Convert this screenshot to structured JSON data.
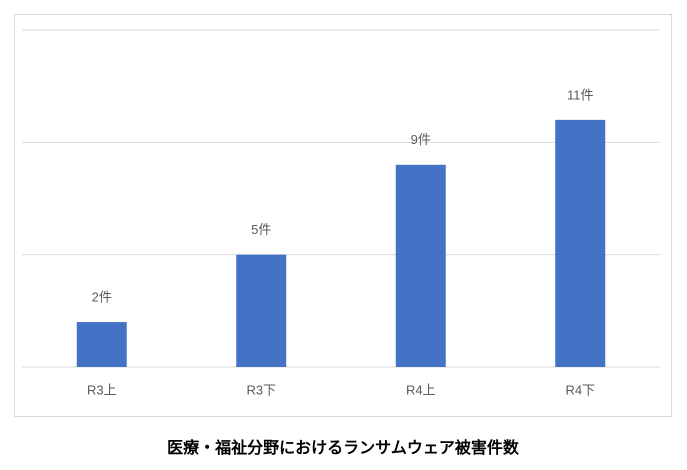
{
  "chart_data": {
    "type": "bar",
    "title": "医療・福祉分野におけるランサムウェア被害件数",
    "categories": [
      "R3上",
      "R3下",
      "R4上",
      "R4下"
    ],
    "values": [
      2,
      5,
      9,
      11
    ],
    "value_labels": [
      "2件",
      "5件",
      "9件",
      "11件"
    ],
    "color": "#4472c4",
    "ylim": [
      0,
      15
    ],
    "yticks": [
      0,
      5,
      10,
      15
    ],
    "grid": true
  }
}
